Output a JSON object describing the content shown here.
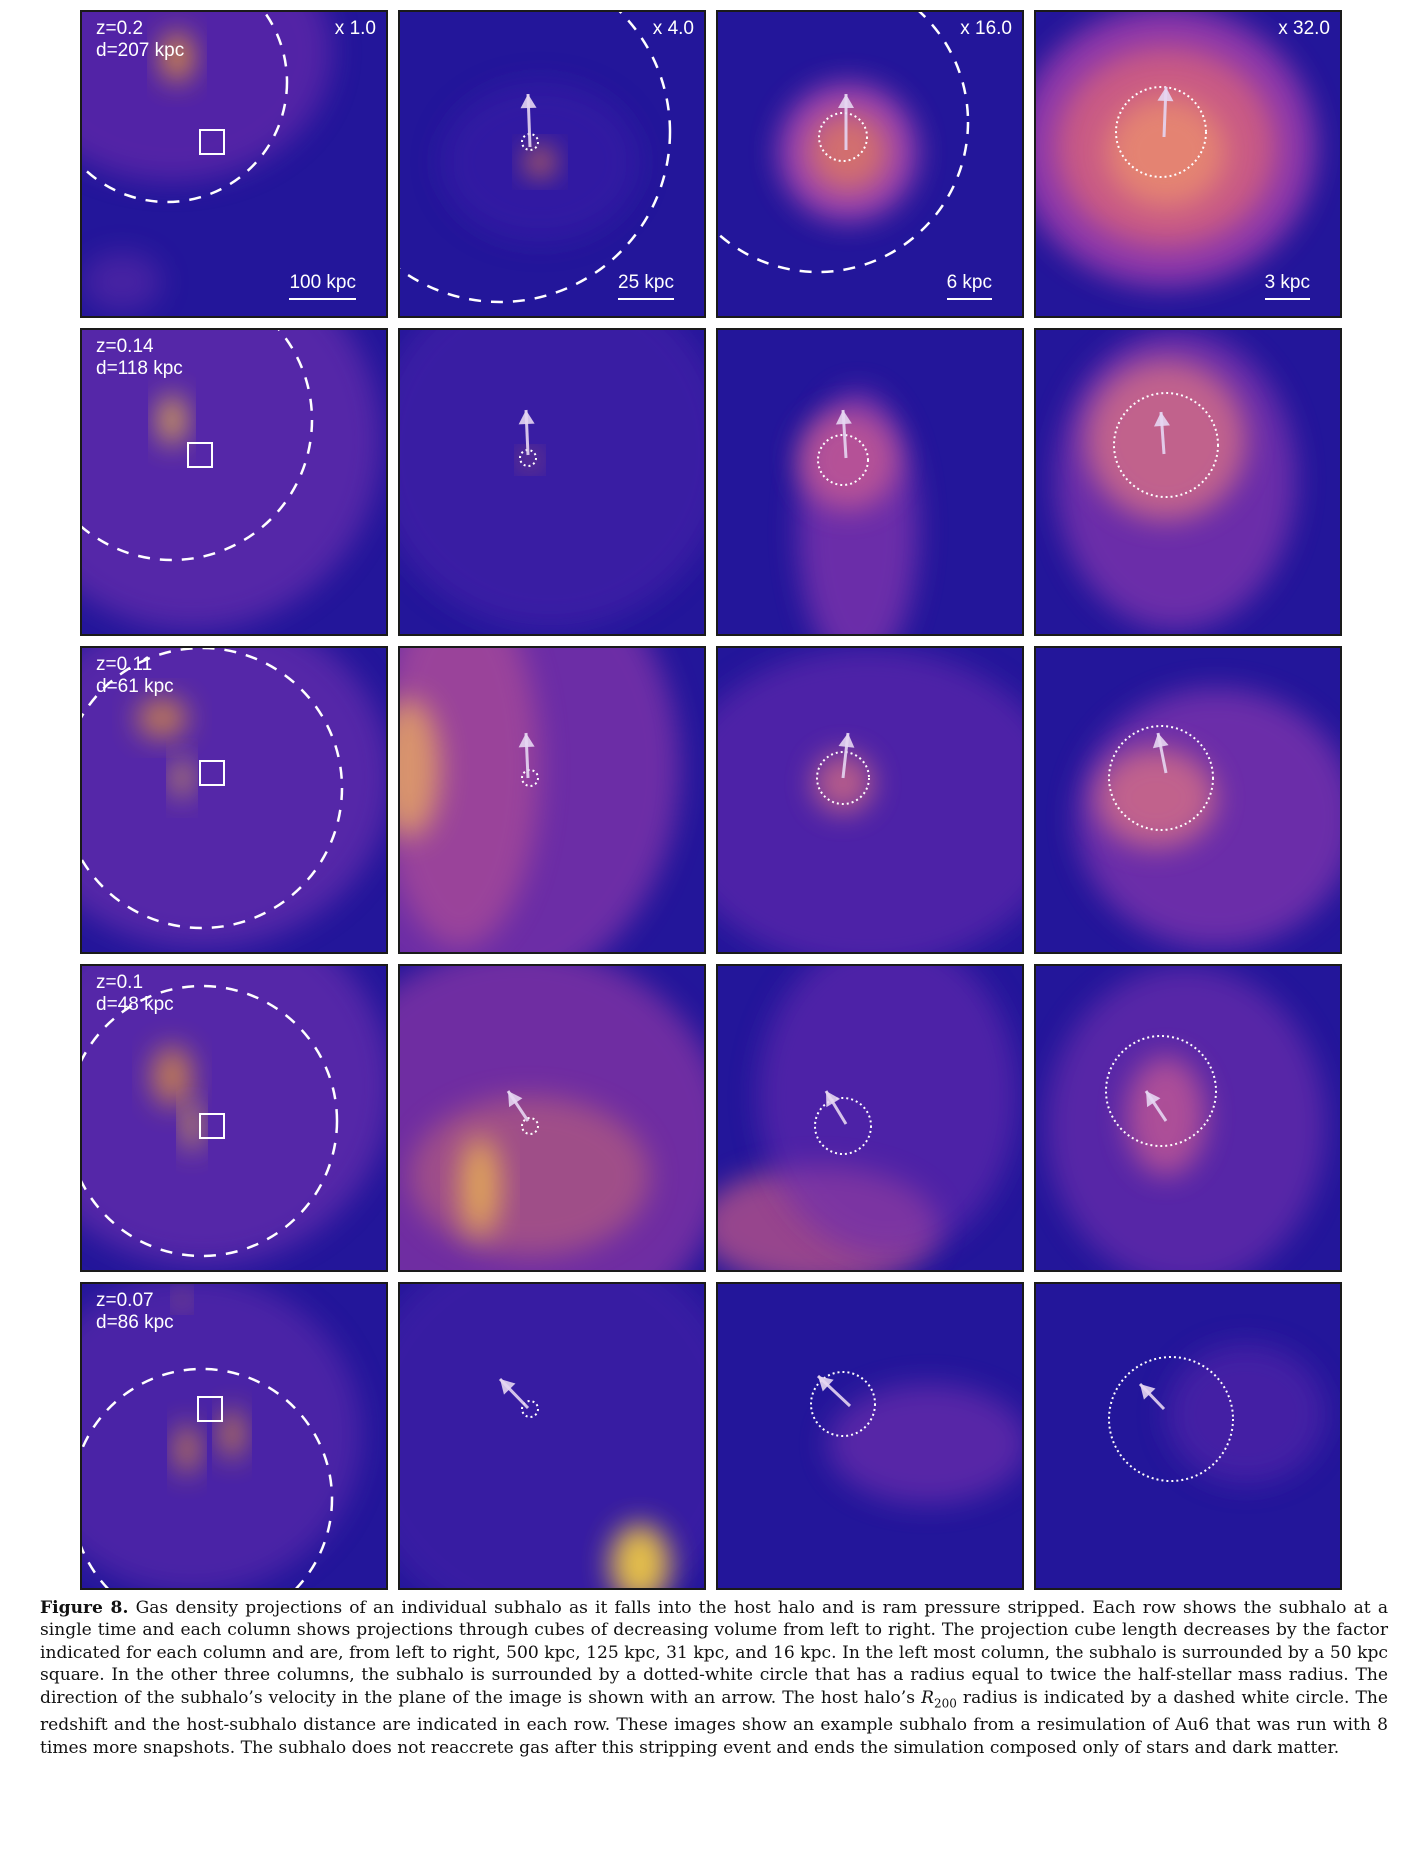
{
  "columns": [
    {
      "magnification": "x 1.0",
      "scale_bar": "100 kpc"
    },
    {
      "magnification": "x 4.0",
      "scale_bar": "25 kpc"
    },
    {
      "magnification": "x 16.0",
      "scale_bar": "6 kpc"
    },
    {
      "magnification": "x 32.0",
      "scale_bar": "3 kpc"
    }
  ],
  "rows": [
    {
      "z": "z=0.2",
      "d": "d=207 kpc"
    },
    {
      "z": "z=0.14",
      "d": "d=118 kpc"
    },
    {
      "z": "z=0.11",
      "d": "d=61 kpc"
    },
    {
      "z": "z=0.1",
      "d": "d=48 kpc"
    },
    {
      "z": "z=0.07",
      "d": "d=86 kpc"
    }
  ],
  "colormap": {
    "low": "#23169a",
    "mid": "#b43fa6",
    "high": "#f8e637"
  },
  "caption": {
    "label": "Figure 8.",
    "text_before_r": "Gas density projections of an individual subhalo as it falls into the host halo and is ram pressure stripped. Each row shows the subhalo at a single time and each column shows projections through cubes of decreasing volume from left to right. The projection cube length decreases by the factor indicated for each column and are, from left to right, 500 kpc, 125 kpc, 31 kpc, and 16 kpc. In the left most column, the subhalo is surrounded by a 50 kpc square. In the other three columns, the subhalo is surrounded by a dotted-white circle that has a radius equal to twice the half-stellar mass radius. The direction of the subhalo’s velocity in the plane of the image is shown with an arrow. The host halo’s ",
    "r_symbol": "R",
    "r_subscript": "200",
    "text_after_r": " radius is indicated by a dashed white circle. The redshift and the host-subhalo distance are indicated in each row. These images show an example subhalo from a resimulation of Au6 that was run with 8 times more snapshots. The subhalo does not reaccrete gas after this stripping event and ends the simulation composed only of stars and dark matter."
  }
}
